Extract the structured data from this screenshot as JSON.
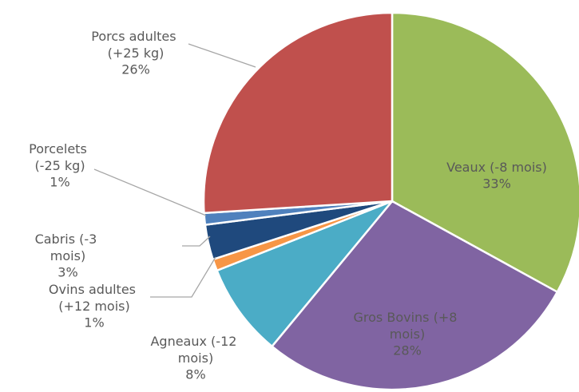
{
  "chart_data": {
    "type": "pie",
    "categories": [
      "Veaux (-8 mois)",
      "Gros Bovins (+8 mois)",
      "Agneaux (-12 mois)",
      "Ovins adultes (+12 mois)",
      "Cabris (-3 mois)",
      "Porcelets (-25 kg)",
      "Porcs adultes (+25 kg)"
    ],
    "values": [
      33,
      28,
      8,
      1,
      3,
      1,
      26
    ],
    "value_labels": [
      "33%",
      "28%",
      "8%",
      "1%",
      "3%",
      "1%",
      "26%"
    ],
    "colors": [
      "#9bbb59",
      "#8064a2",
      "#4bacc6",
      "#f79646",
      "#1f497d",
      "#4f81bd",
      "#c0504d"
    ]
  }
}
